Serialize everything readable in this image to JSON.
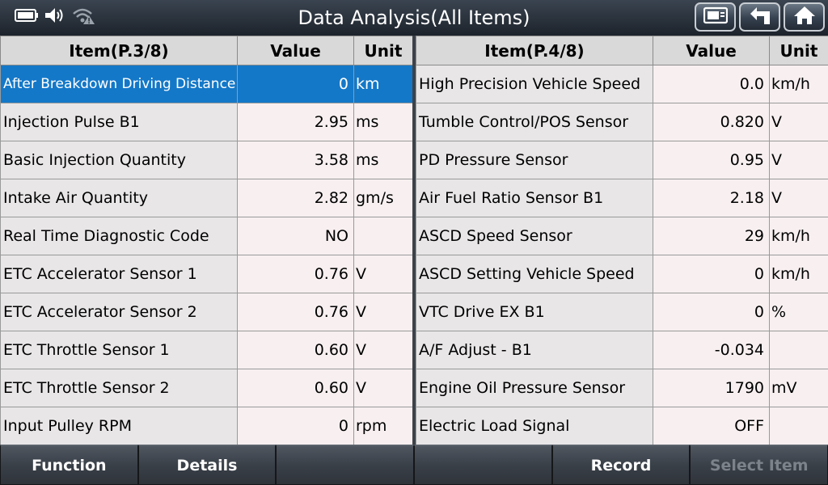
{
  "header": {
    "title": "Data Analysis(All Items)"
  },
  "left_table": {
    "headers": {
      "item": "Item(P.3/8)",
      "value": "Value",
      "unit": "Unit"
    },
    "rows": [
      {
        "item": "After Breakdown Driving Distance",
        "value": "0",
        "unit": "km"
      },
      {
        "item": "Injection Pulse B1",
        "value": "2.95",
        "unit": "ms"
      },
      {
        "item": "Basic Injection Quantity",
        "value": "3.58",
        "unit": "ms"
      },
      {
        "item": "Intake Air Quantity",
        "value": "2.82",
        "unit": "gm/s"
      },
      {
        "item": "Real Time Diagnostic Code",
        "value": "NO",
        "unit": ""
      },
      {
        "item": "ETC Accelerator Sensor 1",
        "value": "0.76",
        "unit": "V"
      },
      {
        "item": "ETC Accelerator Sensor 2",
        "value": "0.76",
        "unit": "V"
      },
      {
        "item": "ETC Throttle Sensor 1",
        "value": "0.60",
        "unit": "V"
      },
      {
        "item": "ETC Throttle Sensor 2",
        "value": "0.60",
        "unit": "V"
      },
      {
        "item": "Input Pulley RPM",
        "value": "0",
        "unit": "rpm"
      }
    ]
  },
  "right_table": {
    "headers": {
      "item": "Item(P.4/8)",
      "value": "Value",
      "unit": "Unit"
    },
    "rows": [
      {
        "item": "High Precision Vehicle Speed",
        "value": "0.0",
        "unit": "km/h"
      },
      {
        "item": "Tumble Control/POS Sensor",
        "value": "0.820",
        "unit": "V"
      },
      {
        "item": "PD Pressure Sensor",
        "value": "0.95",
        "unit": "V"
      },
      {
        "item": "Air Fuel Ratio Sensor B1",
        "value": "2.18",
        "unit": "V"
      },
      {
        "item": "ASCD Speed Sensor",
        "value": "29",
        "unit": "km/h"
      },
      {
        "item": "ASCD Setting Vehicle Speed",
        "value": "0",
        "unit": "km/h"
      },
      {
        "item": "VTC Drive EX B1",
        "value": "0",
        "unit": "%"
      },
      {
        "item": "A/F Adjust - B1",
        "value": "-0.034",
        "unit": ""
      },
      {
        "item": "Engine Oil Pressure Sensor",
        "value": "1790",
        "unit": "mV"
      },
      {
        "item": "Electric Load Signal",
        "value": "OFF",
        "unit": ""
      }
    ]
  },
  "footer": {
    "function_label": "Function",
    "details_label": "Details",
    "blank1_label": "",
    "blank2_label": "",
    "record_label": "Record",
    "select_item_label": "Select Item"
  },
  "colors": {
    "selected_row": "#1478c8",
    "header_bg": "#d9d9d9",
    "titlebar": "#1d232b"
  }
}
